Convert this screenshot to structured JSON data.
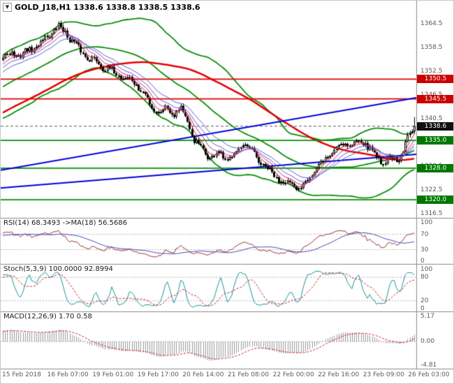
{
  "title": {
    "text": "GOLD_J18,H1 1338.6 1338.8 1338.5 1338.6"
  },
  "colors": {
    "background": "#ffffff",
    "separator": "#8a8a8a",
    "scale_text": "#5a5a5a",
    "candle": "#000000",
    "bull_fill": "#ffffff",
    "bear_fill": "#000000",
    "bollinger": "#0a8f0a",
    "ma_slow": "#e60000",
    "ema_ribbon": [
      "#cc2233",
      "#a23390",
      "#7a4fc0",
      "#5560c8"
    ],
    "trendline": "#0000dd",
    "level_red": "#e00000",
    "level_green": "#089000",
    "bid_line": "#555555",
    "badge_red": "#cc0000",
    "badge_green": "#007800",
    "badge_black": "#101010",
    "panel_level": "#b5b5b5",
    "rsi_line": "#a03030",
    "rsi_ma": "#4848b8",
    "stoch_main": "#19969b",
    "stoch_signal": "#cc2222",
    "macd_hist": "#999999",
    "macd_signal": "#cc2222"
  },
  "price_scale": {
    "ticks": [
      1364.5,
      1358.5,
      1352.5,
      1346.5,
      1340.5,
      1334.5,
      1328.5,
      1322.5,
      1316.5
    ]
  },
  "time_scale": {
    "labels": [
      "15 Feb 2018",
      "16 Feb 07:00",
      "19 Feb 01:00",
      "19 Feb 17:00",
      "20 Feb 14:00",
      "21 Feb 08:00",
      "22 Feb 00:00",
      "22 Feb 16:00",
      "23 Feb 09:00",
      "26 Feb 03:00"
    ]
  },
  "badges": [
    {
      "value": "1350.5",
      "price": 1350.5,
      "type": "resistance-1350-5",
      "color_key": "badge_red"
    },
    {
      "value": "1345.5",
      "price": 1345.5,
      "type": "resistance-1345-5",
      "color_key": "badge_red"
    },
    {
      "value": "1338.6",
      "price": 1338.6,
      "type": "bid",
      "color_key": "badge_black"
    },
    {
      "value": "1335.0",
      "price": 1335.0,
      "type": "support-1335-0",
      "color_key": "badge_green"
    },
    {
      "value": "1328.0",
      "price": 1328.0,
      "type": "support-1328-0",
      "color_key": "badge_green"
    },
    {
      "value": "1320.0",
      "price": 1320.0,
      "type": "support-1320-0",
      "color_key": "badge_green"
    }
  ],
  "indicators": {
    "rsi": {
      "label": "RSI(14) 68.3493 ->MA(18) 56.5686",
      "period": 14,
      "ma_period": 18,
      "last": 68.3493,
      "ma_last": 56.5686,
      "ticks": [
        100,
        70,
        30,
        0
      ],
      "levels": [
        70,
        30
      ],
      "range": [
        0,
        100
      ]
    },
    "stoch": {
      "label": "Stoch(5,3,9) 100.0000 92.8994",
      "k": 5,
      "slowing": 3,
      "d": 9,
      "last": 100.0,
      "signal_last": 92.8994,
      "ticks": [
        100,
        80,
        20,
        0
      ],
      "levels": [
        80,
        20
      ],
      "range": [
        0,
        100
      ]
    },
    "macd": {
      "label": "MACD(12,26,9) 1.70 0.58",
      "fast": 12,
      "slow": 26,
      "signal": 9,
      "last": 1.7,
      "signal_last": 0.58,
      "tick_labels": [
        "5.17",
        "0.00",
        "-4.81"
      ],
      "tick_values": [
        5.17,
        0,
        -4.81
      ],
      "range": [
        -4.81,
        5.17
      ]
    }
  },
  "chart_data": {
    "type": "candlestick",
    "symbol": "GOLD_J18",
    "timeframe": "H1",
    "current_ohlc": {
      "open": 1338.6,
      "high": 1338.8,
      "low": 1338.5,
      "close": 1338.6
    },
    "bid": 1338.6,
    "ylim": [
      1315.4,
      1368.3
    ],
    "visible_bars": 186,
    "price_path": [
      [
        0.0,
        1356.0
      ],
      [
        0.02,
        1357.3
      ],
      [
        0.04,
        1356.2
      ],
      [
        0.06,
        1357.8
      ],
      [
        0.08,
        1358.6
      ],
      [
        0.1,
        1360.8
      ],
      [
        0.118,
        1362.3
      ],
      [
        0.135,
        1363.8
      ],
      [
        0.15,
        1362.6
      ],
      [
        0.168,
        1360.2
      ],
      [
        0.188,
        1357.6
      ],
      [
        0.205,
        1356.2
      ],
      [
        0.225,
        1355.0
      ],
      [
        0.245,
        1353.6
      ],
      [
        0.268,
        1352.2
      ],
      [
        0.29,
        1351.2
      ],
      [
        0.31,
        1350.2
      ],
      [
        0.328,
        1348.6
      ],
      [
        0.345,
        1346.4
      ],
      [
        0.36,
        1343.6
      ],
      [
        0.378,
        1342.2
      ],
      [
        0.398,
        1343.2
      ],
      [
        0.415,
        1342.0
      ],
      [
        0.432,
        1343.4
      ],
      [
        0.448,
        1339.5
      ],
      [
        0.465,
        1335.0
      ],
      [
        0.485,
        1332.4
      ],
      [
        0.505,
        1330.6
      ],
      [
        0.525,
        1331.8
      ],
      [
        0.545,
        1329.8
      ],
      [
        0.565,
        1332.2
      ],
      [
        0.585,
        1334.0
      ],
      [
        0.605,
        1332.0
      ],
      [
        0.625,
        1329.6
      ],
      [
        0.645,
        1327.4
      ],
      [
        0.665,
        1325.6
      ],
      [
        0.685,
        1324.6
      ],
      [
        0.705,
        1323.4
      ],
      [
        0.72,
        1322.8
      ],
      [
        0.738,
        1325.2
      ],
      [
        0.755,
        1327.2
      ],
      [
        0.772,
        1328.8
      ],
      [
        0.79,
        1331.2
      ],
      [
        0.81,
        1333.2
      ],
      [
        0.83,
        1334.6
      ],
      [
        0.85,
        1333.8
      ],
      [
        0.868,
        1335.4
      ],
      [
        0.885,
        1333.8
      ],
      [
        0.905,
        1331.2
      ],
      [
        0.925,
        1329.6
      ],
      [
        0.942,
        1330.8
      ],
      [
        0.958,
        1329.2
      ],
      [
        0.972,
        1332.0
      ],
      [
        0.984,
        1336.0
      ],
      [
        1.0,
        1338.6
      ]
    ],
    "overlays": {
      "horizontal_levels": {
        "red": [
          1350.5,
          1345.5
        ],
        "green": [
          1335.0,
          1328.0,
          1320.0
        ]
      },
      "trendlines": [
        {
          "x": [
            0,
            1
          ],
          "price": [
            1327.5,
            1345.8
          ]
        },
        {
          "x": [
            0,
            1
          ],
          "price": [
            1323.0,
            1331.5
          ]
        }
      ],
      "bollinger_period": 45,
      "ma_period": 90,
      "ema_periods": [
        5,
        9,
        14,
        21
      ]
    }
  }
}
